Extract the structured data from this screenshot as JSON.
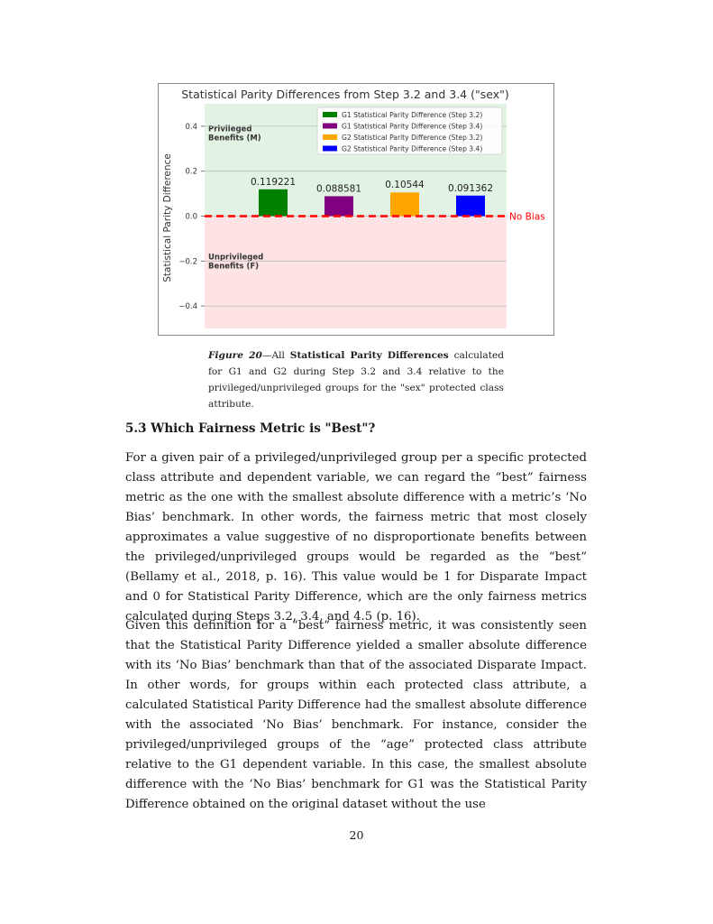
{
  "figure": {
    "chart_data": {
      "type": "bar",
      "title": "Statistical Parity Differences from Step 3.2 and 3.4 (\"sex\")",
      "xlabel": "",
      "ylabel": "Statistical Parity Difference",
      "ylim": [
        -0.5,
        0.5
      ],
      "yticks": [
        0.4,
        0.2,
        0.0,
        -0.2,
        -0.4
      ],
      "ytick_labels": [
        "0.4",
        "0.2",
        "0.0",
        "−0.2",
        "−0.4"
      ],
      "grid": true,
      "legend_position": "top-right",
      "series": [
        {
          "name": "G1 Statistical Parity Difference (Step 3.2)",
          "value": 0.119221,
          "label": "0.119221",
          "color": "#008000"
        },
        {
          "name": "G1 Statistical Parity Difference (Step 3.4)",
          "value": 0.088581,
          "label": "0.088581",
          "color": "#800080"
        },
        {
          "name": "G2 Statistical Parity Difference (Step 3.2)",
          "value": 0.10544,
          "label": "0.10544",
          "color": "#FFA500"
        },
        {
          "name": "G2 Statistical Parity Difference (Step 3.4)",
          "value": 0.091362,
          "label": "0.091362",
          "color": "#0000FF"
        }
      ],
      "reference_line": {
        "value": 0.0,
        "label": "No Bias",
        "color": "#FF0000"
      },
      "regions": [
        {
          "label_line1": "Privileged",
          "label_line2": "Benefits (M)",
          "from": 0.0,
          "to": 0.5,
          "color": "#e3f3e3"
        },
        {
          "label_line1": "Unprivileged",
          "label_line2": "Benefits (F)",
          "from": -0.5,
          "to": 0.0,
          "color": "#fde3e3"
        }
      ]
    },
    "caption": {
      "label": "Figure 20",
      "dash": "—",
      "pre": "All ",
      "bold_term": "Statistical Parity Differences",
      "text": " calculated for G1 and G2 during Step 3.2 and 3.4 relative to the privileged/unprivileged groups for the \"sex\" protected class attribute."
    }
  },
  "section": {
    "heading": "5.3 Which Fairness Metric is \"Best\"?"
  },
  "paragraphs": [
    "For a given pair of a privileged/unprivileged group per a specific protected class attribute and dependent variable, we can regard the “best” fairness metric as the one with the smallest absolute difference with a metric’s ‘No Bias’ benchmark. In other words, the fairness metric that most closely approximates a value suggestive of no disproportionate benefits between the privileged/unprivileged groups would be regarded as the “best” (Bellamy et al., 2018, p. 16). This value would be 1 for Disparate Impact and 0 for Statistical Parity Difference, which are the only fairness metrics calculated during Steps 3.2, 3.4, and 4.5 (p. 16).",
    "Given this definition for a “best” fairness metric, it was consistently seen that the Statistical Parity Difference yielded a smaller absolute difference with its ‘No Bias’ benchmark than that of the associated Disparate Impact. In other words, for groups within each protected class attribute, a calculated Statistical Parity Difference had the smallest absolute difference with the associated ‘No Bias’ benchmark. For instance, consider the privileged/unprivileged groups of the “age” protected class attribute relative to the G1 dependent variable. In this case, the smallest absolute difference with the ‘No Bias’ benchmark for G1 was the Statistical Parity Difference obtained on the original dataset without the use"
  ],
  "page_number": "20"
}
